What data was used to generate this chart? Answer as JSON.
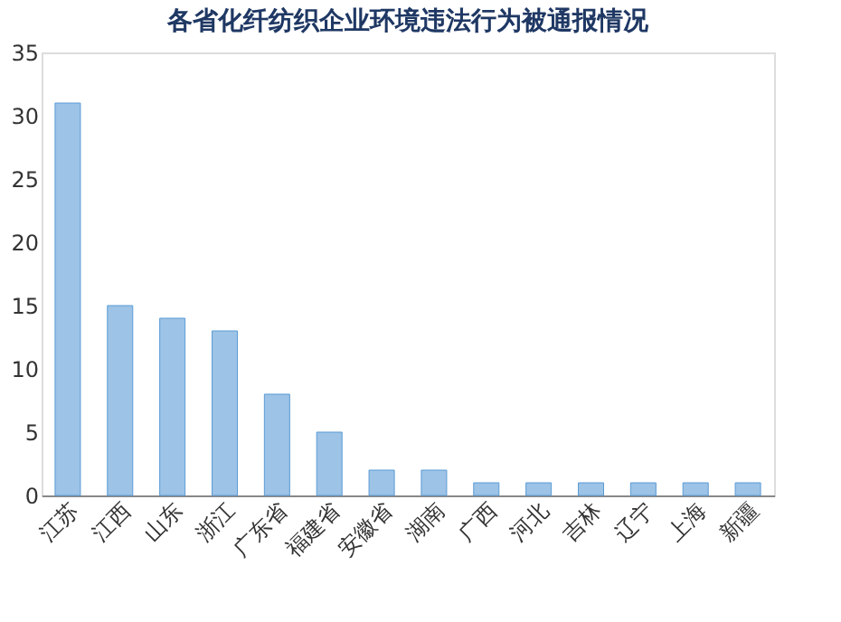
{
  "chart_data": {
    "type": "bar",
    "title": "各省化纤纺织企业环境违法行为被通报情况",
    "categories": [
      "江苏",
      "江西",
      "山东",
      "浙江",
      "广东省",
      "福建省",
      "安徽省",
      "湖南",
      "广西",
      "河北",
      "吉林",
      "辽宁",
      "上海",
      "新疆"
    ],
    "values": [
      31,
      15,
      14,
      13,
      8,
      5,
      2,
      2,
      1,
      1,
      1,
      1,
      1,
      1
    ],
    "color": "#9dc3e6",
    "ylim": [
      0,
      35
    ],
    "yticks": [
      0,
      5,
      10,
      15,
      20,
      25,
      30,
      35
    ],
    "grid": false
  }
}
